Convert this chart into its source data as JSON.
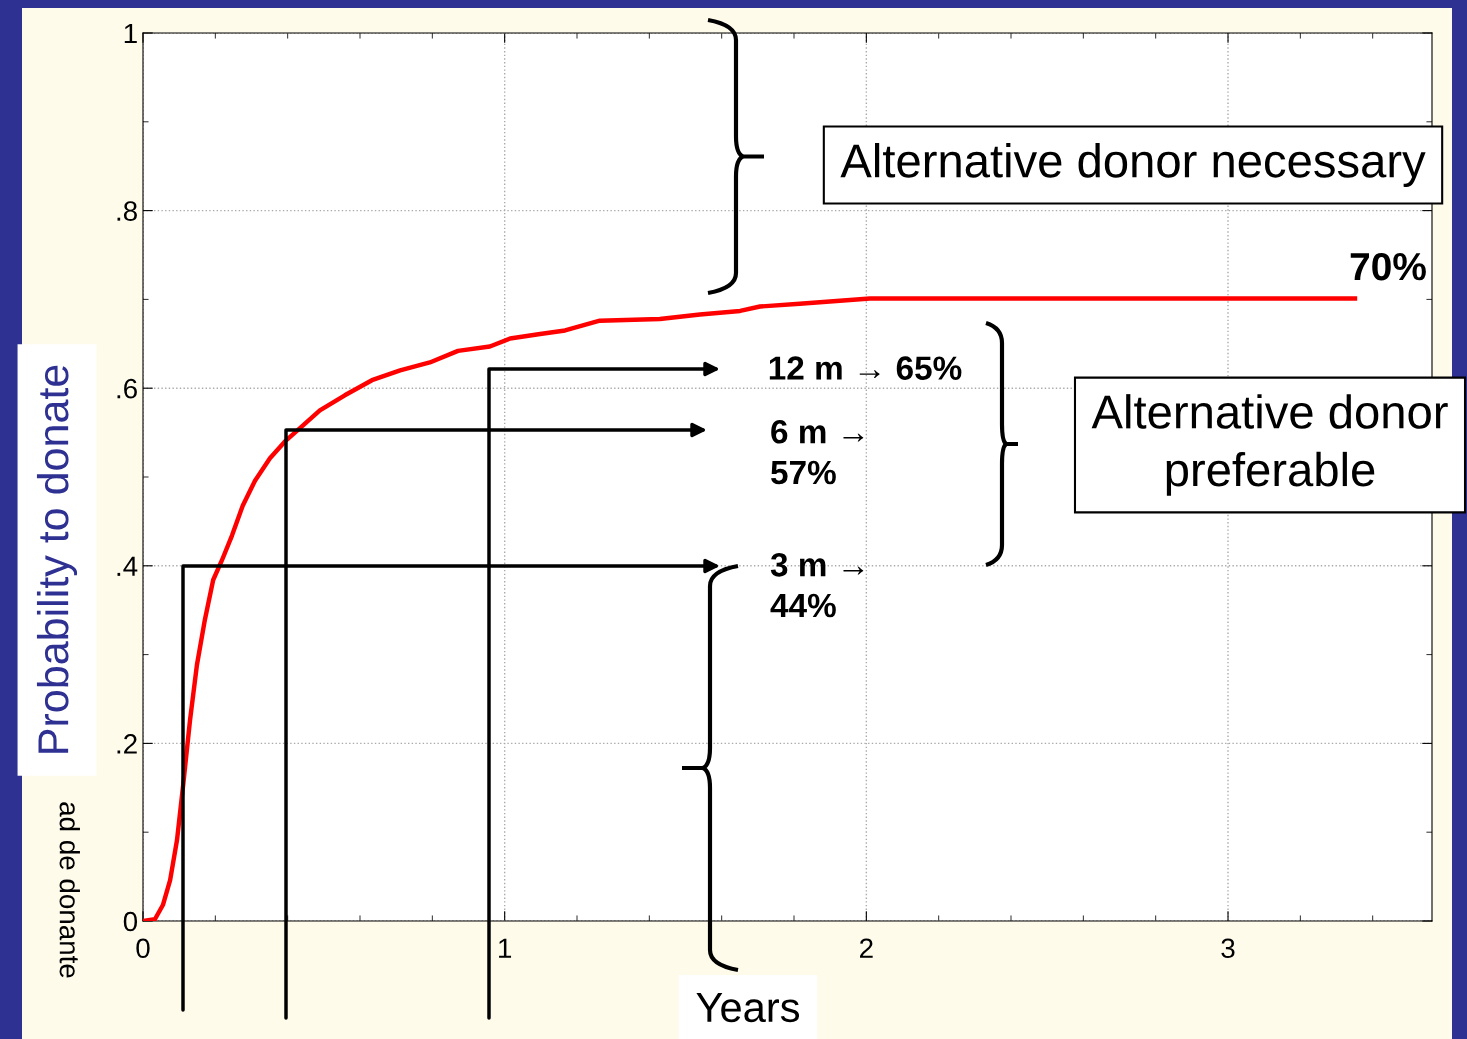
{
  "chart_data": {
    "type": "line",
    "xlabel": "Years",
    "ylabel": "Probability to donate",
    "xlim": [
      0,
      3.564
    ],
    "ylim": [
      0,
      1
    ],
    "xticks": [
      0,
      1,
      2,
      3
    ],
    "yticks": [
      0,
      {
        "value": 0.2,
        "label": ".2"
      },
      {
        "value": 0.4,
        "label": ".4"
      },
      {
        "value": 0.6,
        "label": ".6"
      },
      {
        "value": 0.8,
        "label": ".8"
      },
      1
    ],
    "grid": true,
    "marker": "none",
    "line_style": "solid",
    "legend": false,
    "series": [
      {
        "color": "#ff0000",
        "x": [
          0,
          0.033,
          0.055,
          0.075,
          0.094,
          0.111,
          0.13,
          0.149,
          0.171,
          0.194,
          0.218,
          0.246,
          0.276,
          0.31,
          0.351,
          0.395,
          0.434,
          0.489,
          0.558,
          0.633,
          0.711,
          0.793,
          0.871,
          0.959,
          1.015,
          1.098,
          1.167,
          1.263,
          1.429,
          1.54,
          1.651,
          1.706,
          1.816,
          2.01,
          3.351
        ],
        "values": [
          0,
          0.002,
          0.018,
          0.046,
          0.091,
          0.153,
          0.226,
          0.288,
          0.339,
          0.384,
          0.406,
          0.434,
          0.468,
          0.496,
          0.521,
          0.541,
          0.555,
          0.575,
          0.592,
          0.609,
          0.62,
          0.629,
          0.642,
          0.647,
          0.656,
          0.661,
          0.665,
          0.676,
          0.678,
          0.683,
          0.687,
          0.692,
          0.695,
          0.701,
          0.701
        ]
      }
    ],
    "annotations": [
      "Alternative donor necessary",
      "70%",
      "12 m → 65%",
      "6 m →\n57%",
      "Alternative donor\npreferable",
      "3 m →\n44%",
      "ad de donante"
    ]
  }
}
